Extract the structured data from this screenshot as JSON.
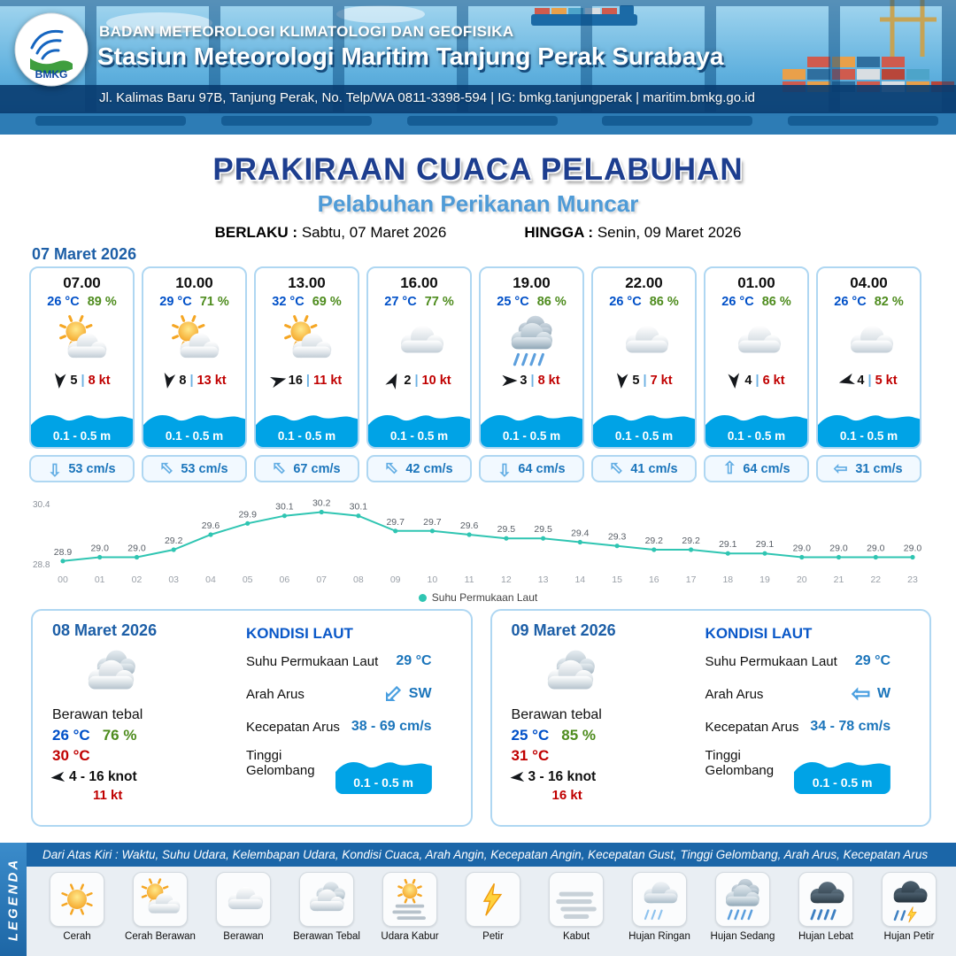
{
  "header": {
    "logo_text": "BMKG",
    "agency": "BADAN METEOROLOGI KLIMATOLOGI DAN GEOFISIKA",
    "station": "Stasiun Meteorologi Maritim Tanjung Perak Surabaya",
    "address": "Jl. Kalimas Baru 97B, Tanjung Perak, No. Telp/WA 0811-3398-594 | IG: bmkg.tanjungperak | maritim.bmkg.go.id"
  },
  "title": {
    "main": "PRAKIRAAN CUACA PELABUHAN",
    "subtitle": "Pelabuhan Perikanan Muncar",
    "valid_from_label": "BERLAKU :",
    "valid_from": "Sabtu, 07 Maret 2026",
    "valid_to_label": "HINGGA :",
    "valid_to": "Senin, 09 Maret 2026"
  },
  "forecast_date": "07 Maret 2026",
  "ui": {
    "sep": "|"
  },
  "cards": [
    {
      "time": "07.00",
      "temp": "26 °C",
      "humidity": "89 %",
      "icon": "cerah-berawan",
      "wind_dir_deg": 185,
      "wind_speed": "5",
      "gust": "8 kt",
      "wave": "0.1 - 0.5 m",
      "current_dir_deg": 180,
      "current": "53 cm/s"
    },
    {
      "time": "10.00",
      "temp": "29 °C",
      "humidity": "71 %",
      "icon": "cerah-berawan",
      "wind_dir_deg": 190,
      "wind_speed": "8",
      "gust": "13 kt",
      "wave": "0.1 - 0.5 m",
      "current_dir_deg": 315,
      "current": "53 cm/s"
    },
    {
      "time": "13.00",
      "temp": "32 °C",
      "humidity": "69 %",
      "icon": "cerah-berawan",
      "wind_dir_deg": 75,
      "wind_speed": "16",
      "gust": "11 kt",
      "wave": "0.1 - 0.5 m",
      "current_dir_deg": 315,
      "current": "67 cm/s"
    },
    {
      "time": "16.00",
      "temp": "27 °C",
      "humidity": "77 %",
      "icon": "berawan",
      "wind_dir_deg": 25,
      "wind_speed": "2",
      "gust": "10 kt",
      "wave": "0.1 - 0.5 m",
      "current_dir_deg": 315,
      "current": "42 cm/s"
    },
    {
      "time": "19.00",
      "temp": "25 °C",
      "humidity": "86 %",
      "icon": "hujan-sedang",
      "wind_dir_deg": 90,
      "wind_speed": "3",
      "gust": "8 kt",
      "wave": "0.1 - 0.5 m",
      "current_dir_deg": 180,
      "current": "64 cm/s"
    },
    {
      "time": "22.00",
      "temp": "26 °C",
      "humidity": "86 %",
      "icon": "berawan",
      "wind_dir_deg": 185,
      "wind_speed": "5",
      "gust": "7 kt",
      "wave": "0.1 - 0.5 m",
      "current_dir_deg": 315,
      "current": "41 cm/s"
    },
    {
      "time": "01.00",
      "temp": "26 °C",
      "humidity": "86 %",
      "icon": "berawan",
      "wind_dir_deg": 175,
      "wind_speed": "4",
      "gust": "6 kt",
      "wave": "0.1 - 0.5 m",
      "current_dir_deg": 0,
      "current": "64 cm/s"
    },
    {
      "time": "04.00",
      "temp": "26 °C",
      "humidity": "82 %",
      "icon": "berawan",
      "wind_dir_deg": 255,
      "wind_speed": "4",
      "gust": "5 kt",
      "wave": "0.1 - 0.5 m",
      "current_dir_deg": 270,
      "current": "31 cm/s"
    }
  ],
  "chart_data": {
    "type": "line",
    "series": [
      {
        "name": "Suhu Permukaan Laut",
        "values": [
          28.9,
          29.0,
          29.0,
          29.2,
          29.6,
          29.9,
          30.1,
          30.2,
          30.1,
          29.7,
          29.7,
          29.6,
          29.5,
          29.5,
          29.4,
          29.3,
          29.2,
          29.2,
          29.1,
          29.1,
          29.0,
          29.0,
          29.0,
          29.0
        ]
      }
    ],
    "x": [
      "00",
      "01",
      "02",
      "03",
      "04",
      "05",
      "06",
      "07",
      "08",
      "09",
      "10",
      "11",
      "12",
      "13",
      "14",
      "15",
      "16",
      "17",
      "18",
      "19",
      "20",
      "21",
      "22",
      "23"
    ],
    "ylim": [
      28.8,
      30.4
    ],
    "line_color": "#2fc5b2",
    "grid": false,
    "legend_position": "bottom"
  },
  "sea_labels": {
    "title": "KONDISI LAUT",
    "sst": "Suhu Permukaan Laut",
    "direction": "Arah Arus",
    "speed": "Kecepatan Arus",
    "wave": "Tinggi Gelombang"
  },
  "days": [
    {
      "date": "08 Maret 2026",
      "icon": "berawan-tebal",
      "condition": "Berawan tebal",
      "temp_min": "26 °C",
      "humidity": "76 %",
      "temp_max": "30 °C",
      "wind_dir_deg": 265,
      "wind_range": "4 - 16 knot",
      "gust": "11 kt",
      "sea": {
        "sst": "29 °C",
        "current_dir": "SW",
        "current_dir_deg": 225,
        "current_speed": "38 - 69 cm/s",
        "wave": "0.1 - 0.5 m"
      }
    },
    {
      "date": "09 Maret 2026",
      "icon": "berawan-tebal",
      "condition": "Berawan tebal",
      "temp_min": "25 °C",
      "humidity": "85 %",
      "temp_max": "31 °C",
      "wind_dir_deg": 265,
      "wind_range": "3 - 16 knot",
      "gust": "16 kt",
      "sea": {
        "sst": "29 °C",
        "current_dir": "W",
        "current_dir_deg": 270,
        "current_speed": "34 - 78 cm/s",
        "wave": "0.1 - 0.5 m"
      }
    }
  ],
  "legend": {
    "banner": "LEGENDA",
    "note": "Dari Atas Kiri : Waktu, Suhu Udara, Kelembapan Udara, Kondisi Cuaca, Arah Angin, Kecepatan Angin, Kecepatan Gust, Tinggi Gelombang, Arah Arus, Kecepatan Arus",
    "items": [
      {
        "label": "Cerah",
        "icon": "cerah"
      },
      {
        "label": "Cerah Berawan",
        "icon": "cerah-berawan"
      },
      {
        "label": "Berawan",
        "icon": "berawan"
      },
      {
        "label": "Berawan Tebal",
        "icon": "berawan-tebal"
      },
      {
        "label": "Udara Kabur",
        "icon": "udara-kabur"
      },
      {
        "label": "Petir",
        "icon": "petir"
      },
      {
        "label": "Kabut",
        "icon": "kabut"
      },
      {
        "label": "Hujan Ringan",
        "icon": "hujan-ringan"
      },
      {
        "label": "Hujan Sedang",
        "icon": "hujan-sedang"
      },
      {
        "label": "Hujan Lebat",
        "icon": "hujan-lebat"
      },
      {
        "label": "Hujan Petir",
        "icon": "hujan-petir"
      }
    ]
  },
  "colors": {
    "title_blue": "#1d3e8f",
    "subtitle_blue": "#4f9bd7",
    "accent_blue": "#1d5fa7",
    "temp_blue": "#0050c8",
    "humidity_green": "#4e8c1e",
    "gust_red": "#c00000",
    "wave_blue": "#00a3e6",
    "current_blue": "#1b75bb",
    "chart_teal": "#2fc5b2",
    "footer_blue": "#1b66a8"
  }
}
